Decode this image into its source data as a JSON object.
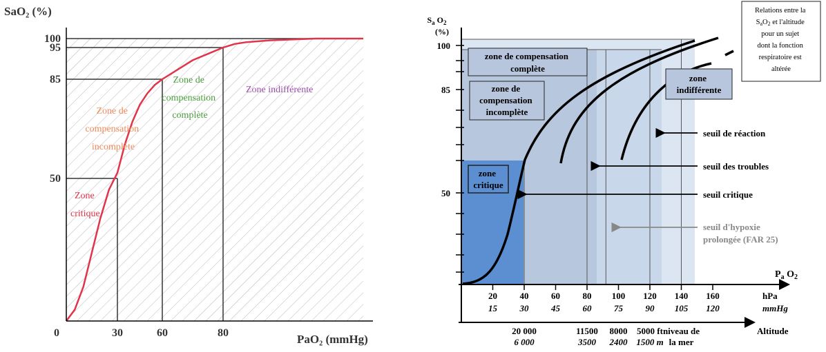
{
  "chart_data": [
    {
      "type": "line",
      "ylabel": "SaO₂ (%)",
      "xlabel": "PaO₂ (mmHg)",
      "origin_label": "0",
      "x_ticks": [
        "30",
        "60",
        "80"
      ],
      "y_ticks": [
        "50",
        "85",
        "95",
        "100"
      ],
      "xlim": [
        0,
        200
      ],
      "ylim": [
        0,
        100
      ],
      "curve_x": [
        0,
        5,
        10,
        15,
        20,
        25,
        30,
        35,
        40,
        45,
        50,
        55,
        60,
        65,
        70,
        75,
        80,
        90,
        100,
        120,
        140,
        160,
        180,
        200
      ],
      "curve_y": [
        0,
        4,
        12,
        24,
        36,
        46,
        52,
        62,
        70,
        76,
        80,
        83,
        85,
        88,
        91,
        93,
        95,
        97,
        98,
        99,
        99.5,
        100,
        100,
        100
      ],
      "guides": [
        {
          "x": 30,
          "y": 50
        },
        {
          "x": 60,
          "y": 85
        },
        {
          "x": 80,
          "y": 95
        }
      ],
      "zones": [
        {
          "label": "Zone critique",
          "color": "#e0344a"
        },
        {
          "label": "Zone de compensation incomplète",
          "color": "#f08a5a"
        },
        {
          "label": "Zone de compensation complète",
          "color": "#4a9e3c"
        },
        {
          "label": "Zone indifférente",
          "color": "#9b4fa8"
        }
      ],
      "curve_color": "#e0344a"
    },
    {
      "type": "line",
      "ylabel": "Sₐ O₂ (%)",
      "xlabel": "Pₐ O₂",
      "y_ticks": [
        "50",
        "85",
        "100"
      ],
      "x_ticks_hpa": [
        "20",
        "40",
        "60",
        "80",
        "100",
        "120",
        "140",
        "160"
      ],
      "x_ticks_mmhg": [
        "15",
        "30",
        "45",
        "60",
        "75",
        "90",
        "105",
        "120"
      ],
      "unit_hpa": "hPa",
      "unit_mmhg": "mmHg",
      "altitude_axis_label": "Altitude",
      "altitude_labels": [
        {
          "top": "20 000",
          "bottom": "6 000",
          "x": 40
        },
        {
          "top": "11500",
          "bottom": "3500",
          "x": 80
        },
        {
          "top": "8000",
          "bottom": "2400",
          "x": 100
        },
        {
          "top": "5000 ft",
          "bottom": "1500 m",
          "x": 120
        },
        {
          "top": "niveau de",
          "bottom": "la mer",
          "x": 140
        }
      ],
      "zones": [
        {
          "label": "zone de compensation complète"
        },
        {
          "label": "zone de compensation incomplète"
        },
        {
          "label": "zone critique"
        },
        {
          "label": "zone indifférente"
        }
      ],
      "thresholds": [
        {
          "label": "seuil de réaction",
          "pao2_hpa": 120
        },
        {
          "label": "seuil des troubles",
          "pao2_hpa": 80
        },
        {
          "label": "seuil critique",
          "pao2_hpa": 40
        },
        {
          "label": "seuil d'hypoxie prolongée (FAR 25)",
          "pao2_hpa": 92
        }
      ],
      "annotation": "Relations entre la SₐO₂ et l'altitude pour un sujet dont la fonction respiratoire est altérée",
      "colors": {
        "critique": "#5b8fd2",
        "incomplete": "#a9bdd8",
        "complete": "#c9d7ea",
        "indifferente": "#dce6f2",
        "box": "#b7c6dc"
      }
    }
  ]
}
